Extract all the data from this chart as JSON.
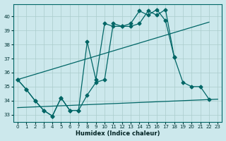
{
  "bg_color": "#cce8ec",
  "grid_color": "#aacccc",
  "line_color": "#006666",
  "xlabel": "Humidex (Indice chaleur)",
  "xlim": [
    -0.5,
    23.5
  ],
  "ylim": [
    32.5,
    40.9
  ],
  "yticks": [
    33,
    34,
    35,
    36,
    37,
    38,
    39,
    40
  ],
  "xticks": [
    0,
    1,
    2,
    3,
    4,
    5,
    6,
    7,
    8,
    9,
    10,
    11,
    12,
    13,
    14,
    15,
    16,
    17,
    18,
    19,
    20,
    21,
    22,
    23
  ],
  "lines": [
    {
      "x": [
        0,
        1,
        2,
        3,
        4,
        5,
        6,
        7,
        8,
        9,
        10,
        11,
        12,
        13,
        14,
        15,
        16,
        17,
        18
      ],
      "y": [
        35.5,
        34.8,
        34.0,
        33.3,
        32.9,
        34.2,
        33.3,
        33.3,
        38.2,
        35.5,
        39.5,
        39.3,
        39.3,
        39.5,
        40.4,
        40.1,
        40.5,
        39.7,
        37.1
      ],
      "marker": true
    },
    {
      "x": [
        0,
        1,
        2,
        3,
        4,
        5,
        6,
        7,
        8,
        9,
        10,
        11,
        12,
        13,
        14,
        15,
        16,
        17,
        18,
        19,
        20,
        21,
        22
      ],
      "y": [
        35.5,
        34.8,
        34.0,
        33.3,
        32.9,
        34.2,
        33.3,
        33.3,
        34.4,
        35.3,
        35.5,
        39.5,
        39.3,
        39.3,
        39.5,
        40.4,
        40.1,
        40.5,
        37.1,
        35.3,
        35.0,
        35.0,
        34.1
      ],
      "marker": true
    },
    {
      "x": [
        0,
        22
      ],
      "y": [
        35.5,
        39.6
      ],
      "marker": false
    },
    {
      "x": [
        0,
        23
      ],
      "y": [
        33.5,
        34.1
      ],
      "marker": false
    }
  ]
}
